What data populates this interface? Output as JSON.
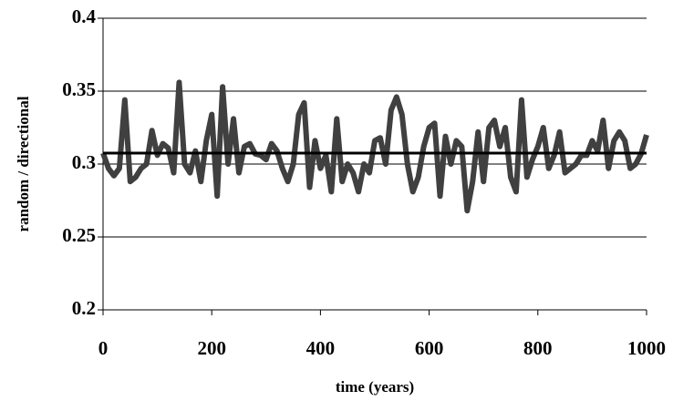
{
  "chart_data": {
    "type": "line",
    "x_label": "time (years)",
    "y_label": "random / directional",
    "x": [
      0,
      10,
      20,
      30,
      40,
      50,
      60,
      70,
      80,
      90,
      100,
      110,
      120,
      130,
      140,
      150,
      160,
      170,
      180,
      190,
      200,
      210,
      220,
      230,
      240,
      250,
      260,
      270,
      280,
      290,
      300,
      310,
      320,
      330,
      340,
      350,
      360,
      370,
      380,
      390,
      400,
      410,
      420,
      430,
      440,
      450,
      460,
      470,
      480,
      490,
      500,
      510,
      520,
      530,
      540,
      550,
      560,
      570,
      580,
      590,
      600,
      610,
      620,
      630,
      640,
      650,
      660,
      670,
      680,
      690,
      700,
      710,
      720,
      730,
      740,
      750,
      760,
      770,
      780,
      790,
      800,
      810,
      820,
      830,
      840,
      850,
      860,
      870,
      880,
      890,
      900,
      910,
      920,
      930,
      940,
      950,
      960,
      970,
      980,
      990,
      1000
    ],
    "series": [
      {
        "color": "#404040",
        "values": [
          0.3075,
          0.297,
          0.292,
          0.297,
          0.344,
          0.288,
          0.291,
          0.297,
          0.3,
          0.323,
          0.306,
          0.314,
          0.311,
          0.294,
          0.356,
          0.3,
          0.294,
          0.309,
          0.288,
          0.316,
          0.334,
          0.278,
          0.353,
          0.3,
          0.331,
          0.294,
          0.312,
          0.314,
          0.307,
          0.306,
          0.303,
          0.314,
          0.309,
          0.297,
          0.288,
          0.3,
          0.334,
          0.342,
          0.284,
          0.316,
          0.297,
          0.306,
          0.281,
          0.331,
          0.288,
          0.3,
          0.294,
          0.281,
          0.3,
          0.294,
          0.316,
          0.318,
          0.3,
          0.337,
          0.346,
          0.334,
          0.3,
          0.281,
          0.291,
          0.312,
          0.325,
          0.328,
          0.278,
          0.319,
          0.3,
          0.316,
          0.312,
          0.268,
          0.288,
          0.322,
          0.288,
          0.325,
          0.33,
          0.312,
          0.325,
          0.291,
          0.281,
          0.344,
          0.291,
          0.303,
          0.312,
          0.325,
          0.297,
          0.306,
          0.322,
          0.294,
          0.297,
          0.3,
          0.306,
          0.306,
          0.316,
          0.309,
          0.33,
          0.297,
          0.316,
          0.322,
          0.316,
          0.297,
          0.3,
          0.307,
          0.32
        ]
      }
    ],
    "reference_line": {
      "value": 0.3075,
      "color": "#000000"
    },
    "xlim": [
      0,
      1000
    ],
    "xticks": [
      0,
      200,
      400,
      600,
      800,
      1000
    ],
    "ylim": [
      0.2,
      0.4
    ],
    "yticks": [
      0.2,
      0.25,
      0.3,
      0.35,
      0.4
    ],
    "grid": true
  }
}
